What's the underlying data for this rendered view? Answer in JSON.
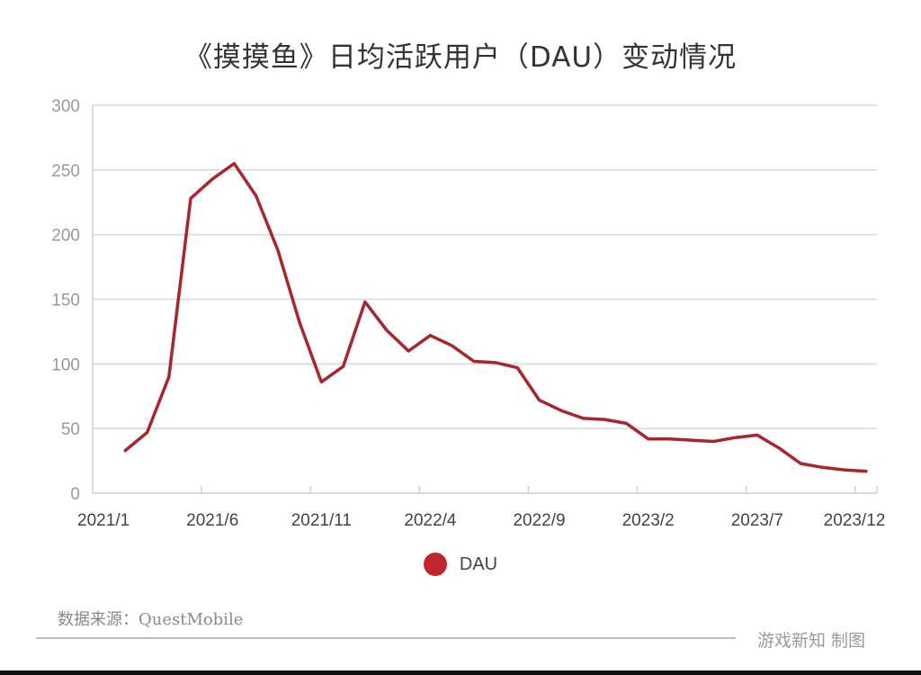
{
  "title": "《摸摸鱼》日均活跃用户（DAU）变动情况",
  "legend": {
    "label": "DAU",
    "color": "#c0262d"
  },
  "source_note": "数据来源：QuestMobile",
  "credit": "游戏新知  制图",
  "colors": {
    "line": "#a8262e",
    "grid": "#d9d9d9",
    "axis_text": "#999999",
    "xaxis_text": "#444444"
  },
  "chart_data": {
    "type": "line",
    "title": "《摸摸鱼》日均活跃用户（DAU）变动情况",
    "xlabel": "",
    "ylabel": "",
    "ylim": [
      0,
      300
    ],
    "yticks": [
      0,
      50,
      100,
      150,
      200,
      250,
      300
    ],
    "grid": true,
    "legend_position": "bottom",
    "x_tick_labels": [
      "2021/1",
      "2021/6",
      "2021/11",
      "2022/4",
      "2022/9",
      "2023/2",
      "2023/7",
      "2023/12"
    ],
    "x": [
      "2021/2",
      "2021/3",
      "2021/4",
      "2021/5",
      "2021/6",
      "2021/7",
      "2021/8",
      "2021/9",
      "2021/10",
      "2021/11",
      "2021/12",
      "2022/1",
      "2022/2",
      "2022/3",
      "2022/4",
      "2022/5",
      "2022/6",
      "2022/7",
      "2022/8",
      "2022/9",
      "2022/10",
      "2022/11",
      "2022/12",
      "2023/1",
      "2023/2",
      "2023/3",
      "2023/4",
      "2023/5",
      "2023/6",
      "2023/7",
      "2023/8",
      "2023/9",
      "2023/10",
      "2023/11",
      "2023/12"
    ],
    "series": [
      {
        "name": "DAU",
        "values": [
          33,
          47,
          90,
          228,
          243,
          255,
          230,
          188,
          132,
          86,
          98,
          148,
          126,
          110,
          122,
          114,
          102,
          101,
          97,
          72,
          64,
          58,
          57,
          54,
          42,
          42,
          41,
          40,
          43,
          45,
          35,
          23,
          20,
          18,
          17
        ]
      }
    ]
  }
}
